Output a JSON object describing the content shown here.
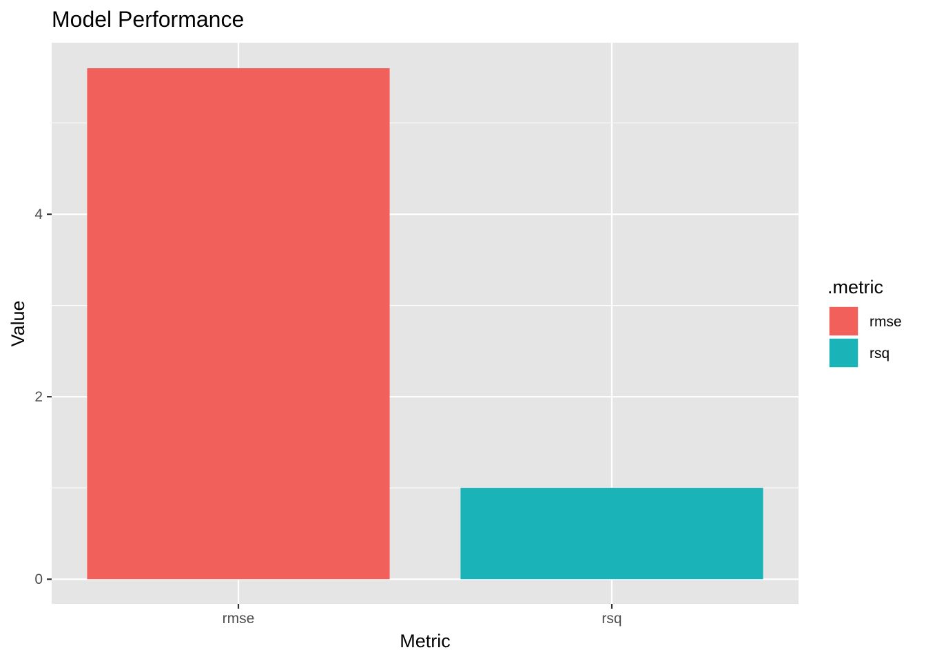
{
  "chart_data": {
    "type": "bar",
    "title": "Model Performance",
    "xlabel": "Metric",
    "ylabel": "Value",
    "categories": [
      "rmse",
      "rsq"
    ],
    "values": [
      5.6,
      1.0
    ],
    "colors": [
      "#f2605c",
      "#1ab3b8"
    ],
    "ylim": [
      -0.27,
      5.88
    ],
    "yticks": [
      0,
      2,
      4
    ],
    "grid": true,
    "panel_background": "#e5e5e5",
    "legend": {
      "title": ".metric",
      "position": "right",
      "entries": [
        "rmse",
        "rsq"
      ]
    }
  }
}
